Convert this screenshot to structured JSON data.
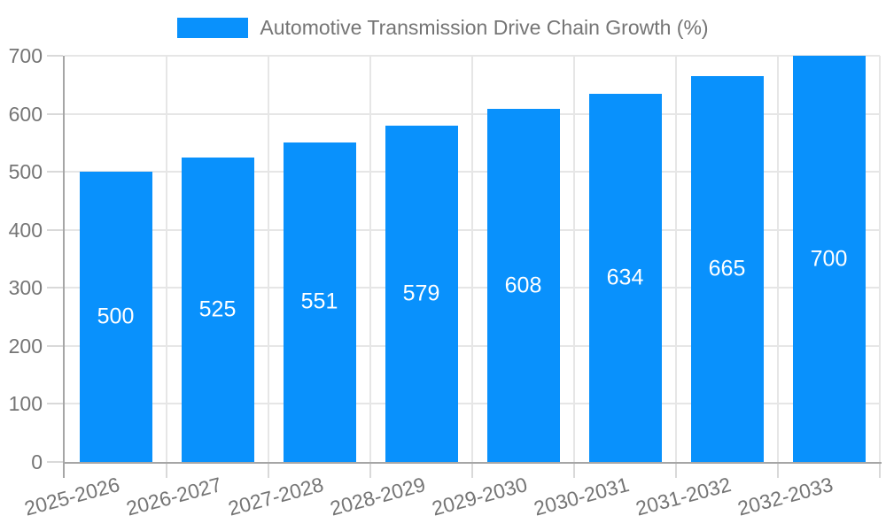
{
  "chart_data": {
    "type": "bar",
    "title": "Automotive Transmission Drive Chain Growth (%)",
    "categories": [
      "2025-2026",
      "2026-2027",
      "2027-2028",
      "2028-2029",
      "2029-2030",
      "2030-2031",
      "2031-2032",
      "2032-2033"
    ],
    "values": [
      500,
      525,
      551,
      579,
      608,
      634,
      665,
      700
    ],
    "xlabel": "",
    "ylabel": "",
    "ylim": [
      0,
      700
    ],
    "y_ticks": [
      0,
      100,
      200,
      300,
      400,
      500,
      600,
      700
    ],
    "grid": true,
    "legend_position": "top",
    "bar_color": "#0991FC",
    "value_label_color": "#FFFFFF"
  },
  "colors": {
    "background": "#FFFFFF",
    "axis_line": "#A6A6A6",
    "gridline": "#E6E6E6",
    "tick_mark": "#D9D9D9",
    "axis_text": "#757575",
    "legend_text": "#757575"
  }
}
